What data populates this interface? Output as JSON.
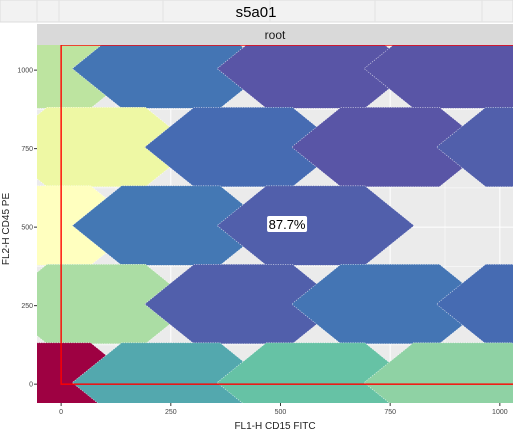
{
  "chart_data": {
    "type": "heatmap",
    "title": "s5a01",
    "facet_label": "root",
    "xlabel": "FL1-H CD15 FITC",
    "ylabel": "FL2-H CD45 PE",
    "xlim": [
      -55,
      1030
    ],
    "ylim": [
      -60,
      1080
    ],
    "x_ticks": [
      0,
      250,
      500,
      750,
      1000
    ],
    "y_ticks": [
      0,
      250,
      500,
      750,
      1000
    ],
    "gate": {
      "type": "rectangle",
      "x_min": 0,
      "y_min": 0,
      "label": "87.7%",
      "label_x": 515,
      "label_y": 510,
      "color": "#ff0000"
    },
    "hex_bins": [
      {
        "x": -45,
        "y": 1005,
        "density": 0.45
      },
      {
        "x": 250,
        "y": 1005,
        "density": 0.12
      },
      {
        "x": 580,
        "y": 1005,
        "density": 0.02
      },
      {
        "x": 915,
        "y": 1005,
        "density": 0.02
      },
      {
        "x": 80,
        "y": 755,
        "density": 0.55
      },
      {
        "x": 415,
        "y": 755,
        "density": 0.09
      },
      {
        "x": 750,
        "y": 755,
        "density": 0.02
      },
      {
        "x": 1080,
        "y": 755,
        "density": 0.05
      },
      {
        "x": -45,
        "y": 505,
        "density": 0.62
      },
      {
        "x": 250,
        "y": 505,
        "density": 0.13
      },
      {
        "x": 580,
        "y": 505,
        "density": 0.05
      },
      {
        "x": 80,
        "y": 255,
        "density": 0.42
      },
      {
        "x": 415,
        "y": 255,
        "density": 0.05
      },
      {
        "x": 750,
        "y": 255,
        "density": 0.12
      },
      {
        "x": 1080,
        "y": 255,
        "density": 0.09
      },
      {
        "x": -45,
        "y": 5,
        "density": 1.0
      },
      {
        "x": 250,
        "y": 5,
        "density": 0.26
      },
      {
        "x": 580,
        "y": 5,
        "density": 0.32
      },
      {
        "x": 915,
        "y": 5,
        "density": 0.38
      }
    ],
    "colors": {
      "panel_bg": "#ebebeb",
      "grid": "#ffffff",
      "strip_bg": "#d9d9d9",
      "title_bg": "#f2f2f2",
      "gate": "#ff0000"
    }
  }
}
